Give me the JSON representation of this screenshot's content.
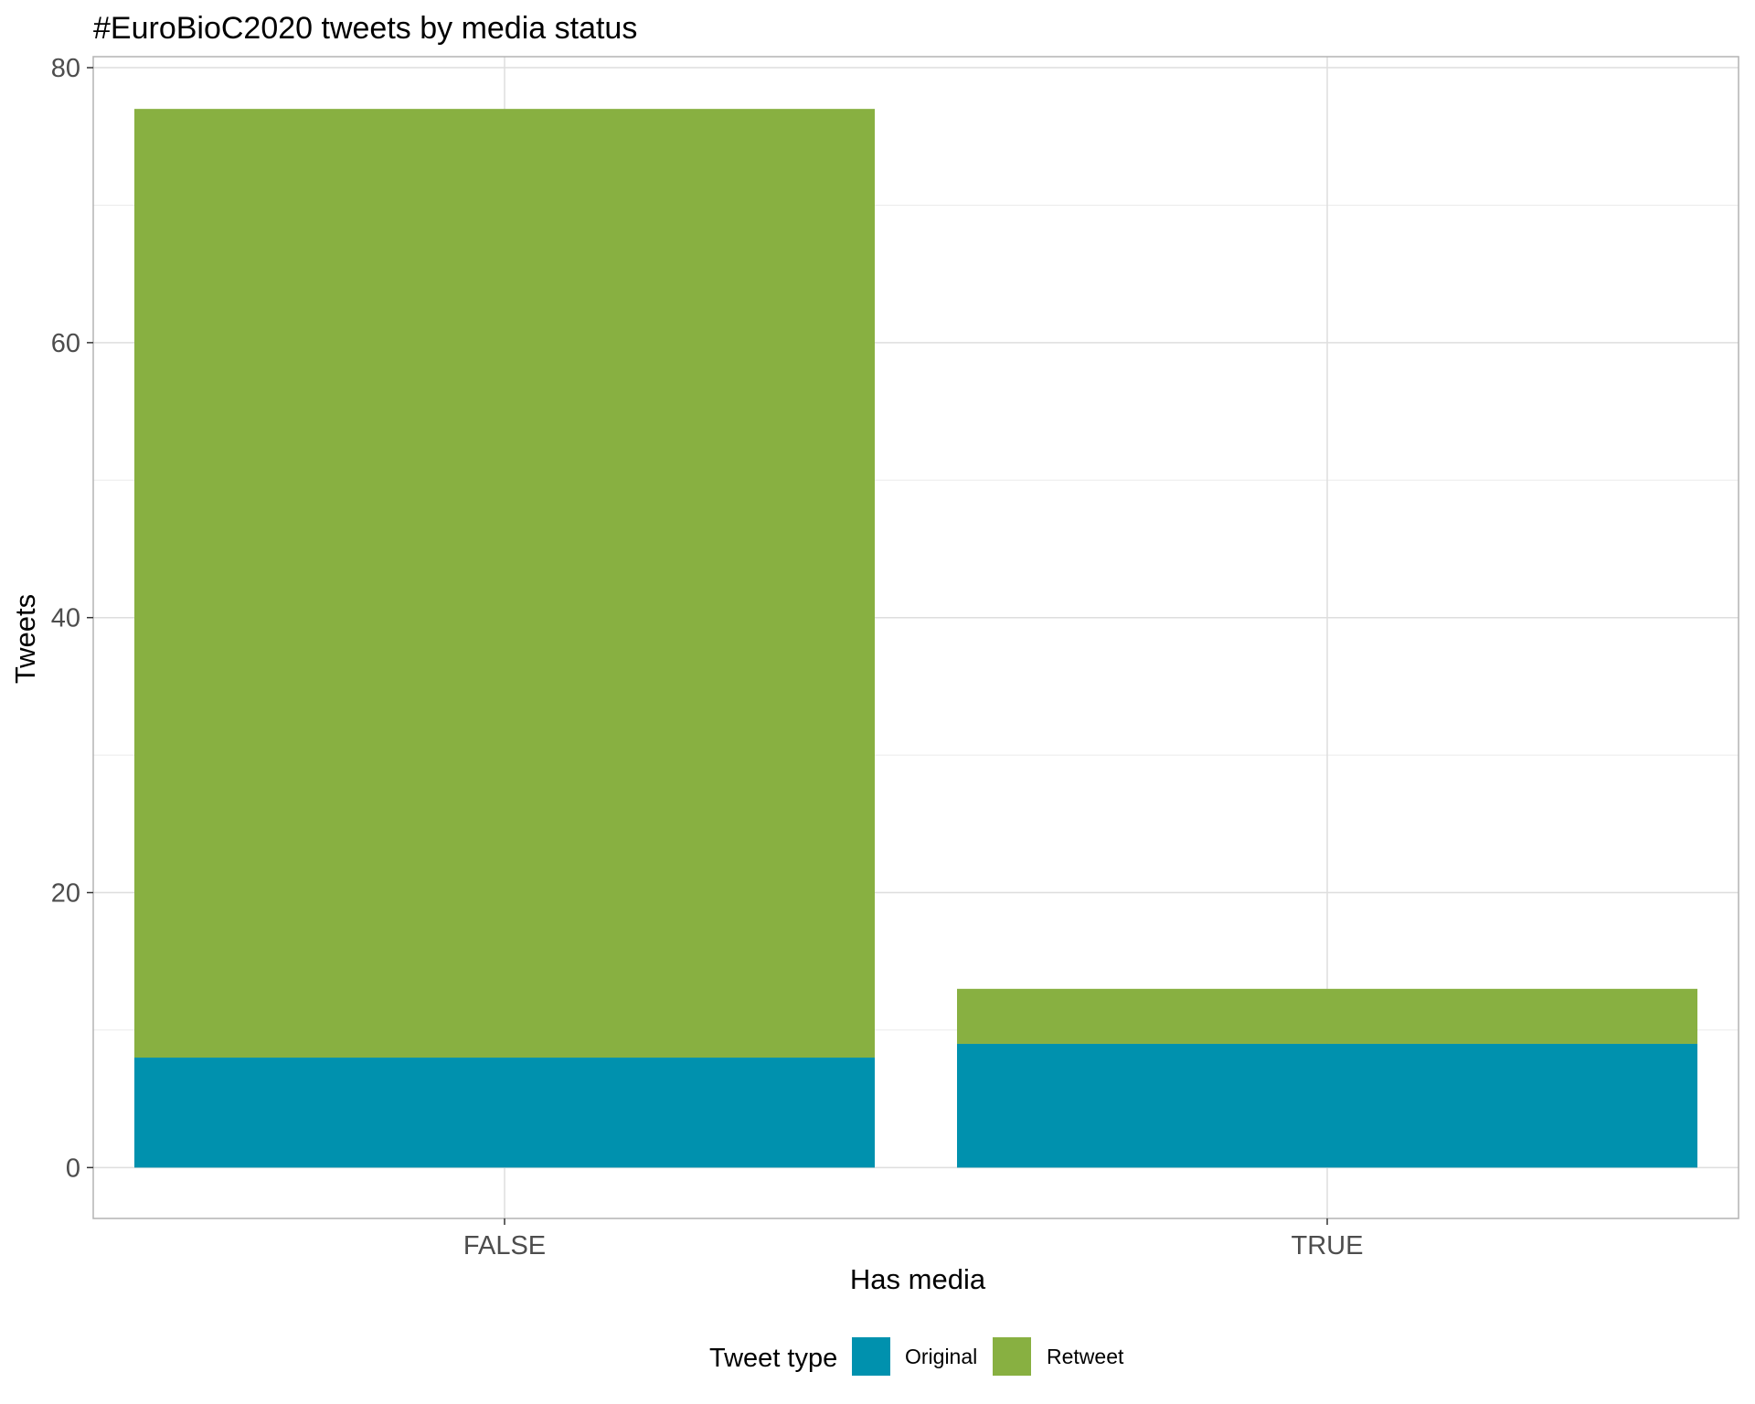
{
  "chart_data": {
    "type": "bar",
    "stacked": true,
    "title": "#EuroBioC2020 tweets by media status",
    "xlabel": "Has media",
    "ylabel": "Tweets",
    "categories": [
      "FALSE",
      "TRUE"
    ],
    "series": [
      {
        "name": "Original",
        "values": [
          8,
          9
        ],
        "color": "#0091AE"
      },
      {
        "name": "Retweet",
        "values": [
          69,
          4
        ],
        "color": "#88B041"
      }
    ],
    "ylim": [
      -3.7,
      80.8
    ],
    "yticks": [
      0,
      20,
      40,
      60,
      80
    ],
    "grid": true,
    "legend": {
      "title": "Tweet type",
      "position": "bottom"
    }
  }
}
